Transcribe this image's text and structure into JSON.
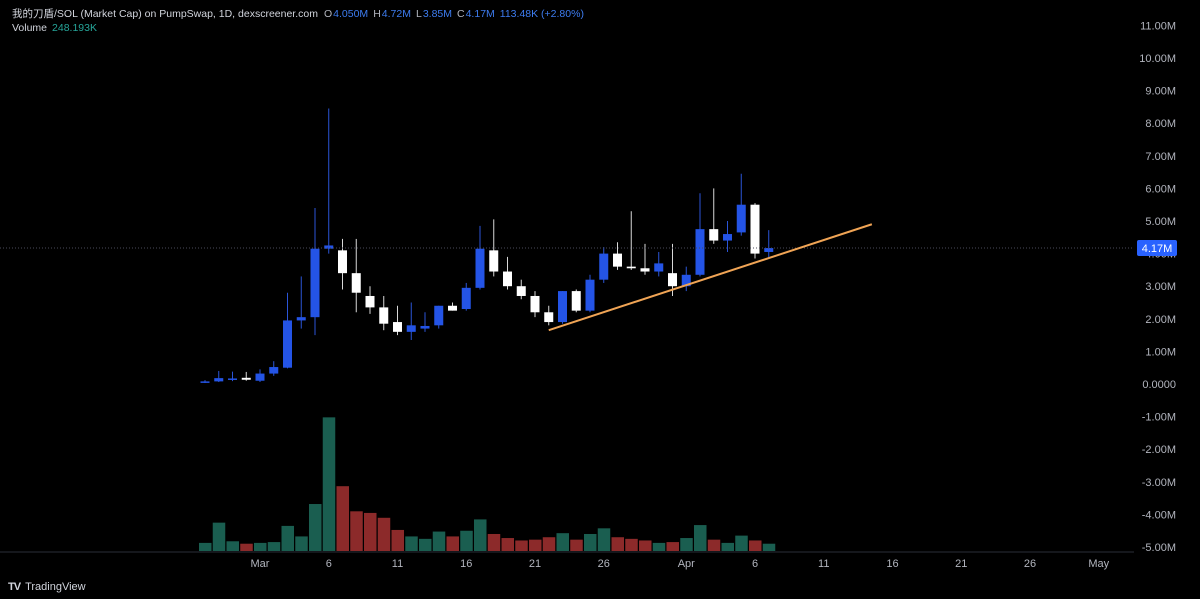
{
  "header": {
    "symbol_title": "我的刀盾/SOL (Market Cap) on PumpSwap, 1D, dexscreener.com",
    "open_label": "O",
    "open_value": "4.050M",
    "high_label": "H",
    "high_value": "4.72M",
    "low_label": "L",
    "low_value": "3.85M",
    "close_label": "C",
    "close_value": "4.17M",
    "change_text": "113.48K (+2.80%)",
    "volume_label": "Volume",
    "volume_value": "248.193K"
  },
  "brand": {
    "name": "TradingView",
    "logo_text": "TV"
  },
  "colors": {
    "background": "#000000",
    "up": "#2454e6",
    "down": "#ffffff",
    "vol_up": "#1a5e50",
    "vol_down": "#8c2a2a",
    "trendline": "#f0a455",
    "price_tag": "#2962ff",
    "axis_text": "#b2b5be"
  },
  "chart_data": {
    "type": "candlestick",
    "y_axis": {
      "min": -5000000,
      "max": 11000000,
      "ticks": [
        {
          "value": 11000000,
          "label": "11.00M"
        },
        {
          "value": 10000000,
          "label": "10.00M"
        },
        {
          "value": 9000000,
          "label": "9.00M"
        },
        {
          "value": 8000000,
          "label": "8.00M"
        },
        {
          "value": 7000000,
          "label": "7.00M"
        },
        {
          "value": 6000000,
          "label": "6.00M"
        },
        {
          "value": 5000000,
          "label": "5.00M"
        },
        {
          "value": 4000000,
          "label": "4.00M"
        },
        {
          "value": 3000000,
          "label": "3.00M"
        },
        {
          "value": 2000000,
          "label": "2.00M"
        },
        {
          "value": 1000000,
          "label": "1.00M"
        },
        {
          "value": 0,
          "label": "0.0000"
        },
        {
          "value": -1000000,
          "label": "-1.00M"
        },
        {
          "value": -2000000,
          "label": "-2.00M"
        },
        {
          "value": -3000000,
          "label": "-3.00M"
        },
        {
          "value": -4000000,
          "label": "-4.00M"
        },
        {
          "value": -5000000,
          "label": "-5.00M"
        }
      ]
    },
    "x_axis": {
      "ticks": [
        {
          "day": 0,
          "label": "Mar"
        },
        {
          "day": 5,
          "label": "6"
        },
        {
          "day": 10,
          "label": "11"
        },
        {
          "day": 15,
          "label": "16"
        },
        {
          "day": 20,
          "label": "21"
        },
        {
          "day": 25,
          "label": "26"
        },
        {
          "day": 31,
          "label": "Apr"
        },
        {
          "day": 36,
          "label": "6"
        },
        {
          "day": 41,
          "label": "11"
        },
        {
          "day": 46,
          "label": "16"
        },
        {
          "day": 51,
          "label": "21"
        },
        {
          "day": 56,
          "label": "26"
        },
        {
          "day": 61,
          "label": "May"
        }
      ]
    },
    "last_price": {
      "value": 4170000,
      "label": "4.17M"
    },
    "trendline": {
      "start": {
        "day": 21,
        "value": 1650000
      },
      "end": {
        "day": 44.5,
        "value": 4900000
      }
    },
    "candles": [
      {
        "day": -4,
        "o": 50000,
        "h": 120000,
        "l": 30000,
        "c": 80000,
        "v": 1
      },
      {
        "day": -3,
        "o": 80000,
        "h": 400000,
        "l": 60000,
        "c": 180000,
        "v": 3.5
      },
      {
        "day": -2,
        "o": 130000,
        "h": 380000,
        "l": 90000,
        "c": 170000,
        "v": 1.2
      },
      {
        "day": -1,
        "o": 190000,
        "h": 370000,
        "l": 100000,
        "c": 130000,
        "v": 0.9
      },
      {
        "day": 0,
        "o": 100000,
        "h": 450000,
        "l": 60000,
        "c": 320000,
        "v": 1.0
      },
      {
        "day": 1,
        "o": 320000,
        "h": 700000,
        "l": 250000,
        "c": 520000,
        "v": 1.1
      },
      {
        "day": 2,
        "o": 500000,
        "h": 2800000,
        "l": 480000,
        "c": 1950000,
        "v": 3.1
      },
      {
        "day": 3,
        "o": 1950000,
        "h": 3300000,
        "l": 1700000,
        "c": 2050000,
        "v": 1.8
      },
      {
        "day": 4,
        "o": 2050000,
        "h": 5400000,
        "l": 1500000,
        "c": 4150000,
        "v": 5.8
      },
      {
        "day": 5,
        "o": 4150000,
        "h": 8450000,
        "l": 4000000,
        "c": 4250000,
        "v": 16.5
      },
      {
        "day": 6,
        "o": 4100000,
        "h": 4450000,
        "l": 2900000,
        "c": 3400000,
        "v": 8.0
      },
      {
        "day": 7,
        "o": 3400000,
        "h": 4450000,
        "l": 2200000,
        "c": 2800000,
        "v": 4.9
      },
      {
        "day": 8,
        "o": 2700000,
        "h": 3000000,
        "l": 2150000,
        "c": 2350000,
        "v": 4.7
      },
      {
        "day": 9,
        "o": 2350000,
        "h": 2700000,
        "l": 1650000,
        "c": 1850000,
        "v": 4.1
      },
      {
        "day": 10,
        "o": 1900000,
        "h": 2400000,
        "l": 1500000,
        "c": 1600000,
        "v": 2.6
      },
      {
        "day": 11,
        "o": 1600000,
        "h": 2500000,
        "l": 1350000,
        "c": 1800000,
        "v": 1.8
      },
      {
        "day": 12,
        "o": 1700000,
        "h": 2200000,
        "l": 1600000,
        "c": 1780000,
        "v": 1.5
      },
      {
        "day": 13,
        "o": 1800000,
        "h": 2400000,
        "l": 1700000,
        "c": 2400000,
        "v": 2.4
      },
      {
        "day": 14,
        "o": 2400000,
        "h": 2500000,
        "l": 2250000,
        "c": 2250000,
        "v": 1.8
      },
      {
        "day": 15,
        "o": 2300000,
        "h": 3100000,
        "l": 2250000,
        "c": 2950000,
        "v": 2.5
      },
      {
        "day": 16,
        "o": 2950000,
        "h": 4850000,
        "l": 2900000,
        "c": 4150000,
        "v": 3.9
      },
      {
        "day": 17,
        "o": 4100000,
        "h": 5050000,
        "l": 3300000,
        "c": 3450000,
        "v": 2.1
      },
      {
        "day": 18,
        "o": 3450000,
        "h": 3900000,
        "l": 2900000,
        "c": 3000000,
        "v": 1.6
      },
      {
        "day": 19,
        "o": 3000000,
        "h": 3200000,
        "l": 2600000,
        "c": 2700000,
        "v": 1.3
      },
      {
        "day": 20,
        "o": 2700000,
        "h": 2850000,
        "l": 2050000,
        "c": 2200000,
        "v": 1.4
      },
      {
        "day": 21,
        "o": 2200000,
        "h": 2400000,
        "l": 1800000,
        "c": 1900000,
        "v": 1.7
      },
      {
        "day": 22,
        "o": 1900000,
        "h": 2850000,
        "l": 1850000,
        "c": 2850000,
        "v": 2.2
      },
      {
        "day": 23,
        "o": 2850000,
        "h": 2900000,
        "l": 2200000,
        "c": 2250000,
        "v": 1.4
      },
      {
        "day": 24,
        "o": 2250000,
        "h": 3350000,
        "l": 2200000,
        "c": 3200000,
        "v": 2.1
      },
      {
        "day": 25,
        "o": 3200000,
        "h": 4200000,
        "l": 3100000,
        "c": 4000000,
        "v": 2.8
      },
      {
        "day": 26,
        "o": 4000000,
        "h": 4350000,
        "l": 3500000,
        "c": 3600000,
        "v": 1.7
      },
      {
        "day": 27,
        "o": 3600000,
        "h": 5300000,
        "l": 3500000,
        "c": 3550000,
        "v": 1.5
      },
      {
        "day": 28,
        "o": 3550000,
        "h": 4300000,
        "l": 3350000,
        "c": 3450000,
        "v": 1.3
      },
      {
        "day": 29,
        "o": 3450000,
        "h": 4050000,
        "l": 3300000,
        "c": 3700000,
        "v": 1.0
      },
      {
        "day": 30,
        "o": 3400000,
        "h": 4300000,
        "l": 2700000,
        "c": 3000000,
        "v": 1.1
      },
      {
        "day": 31,
        "o": 3000000,
        "h": 3600000,
        "l": 2850000,
        "c": 3350000,
        "v": 1.6
      },
      {
        "day": 32,
        "o": 3350000,
        "h": 5850000,
        "l": 3300000,
        "c": 4750000,
        "v": 3.2
      },
      {
        "day": 33,
        "o": 4750000,
        "h": 6000000,
        "l": 4300000,
        "c": 4400000,
        "v": 1.4
      },
      {
        "day": 34,
        "o": 4400000,
        "h": 5000000,
        "l": 4050000,
        "c": 4600000,
        "v": 1.0
      },
      {
        "day": 35,
        "o": 4650000,
        "h": 6450000,
        "l": 4550000,
        "c": 5500000,
        "v": 1.9
      },
      {
        "day": 36,
        "o": 5500000,
        "h": 5550000,
        "l": 3850000,
        "c": 4000000,
        "v": 1.3
      },
      {
        "day": 37,
        "o": 4050000,
        "h": 4720000,
        "l": 3850000,
        "c": 4170000,
        "v": 0.9
      }
    ]
  }
}
